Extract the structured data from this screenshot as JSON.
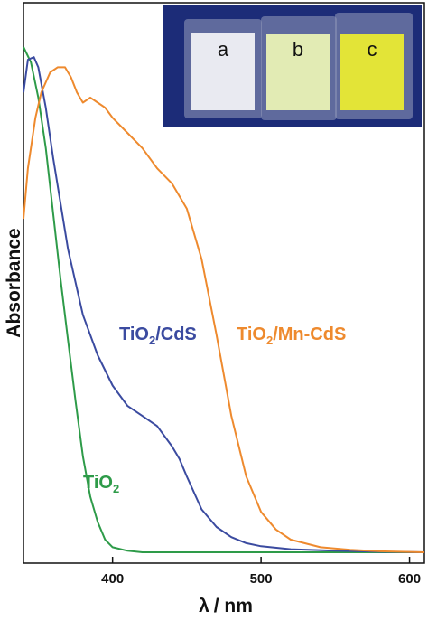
{
  "chart_data": {
    "type": "line",
    "title": "",
    "xlabel_symbol": "λ",
    "xlabel_unit": "/ nm",
    "ylabel": "Absorbance",
    "xlim": [
      340,
      610
    ],
    "ylim": [
      0,
      1
    ],
    "xticks": [
      400,
      500,
      600
    ],
    "grid": false,
    "series": [
      {
        "name": "TiO2",
        "label_main": "TiO",
        "label_sub": "2",
        "color": "#2e9b49",
        "x": [
          340,
          345,
          350,
          355,
          360,
          365,
          370,
          375,
          380,
          385,
          390,
          395,
          400,
          410,
          420,
          450,
          500,
          550,
          610
        ],
        "y": [
          1.0,
          0.97,
          0.9,
          0.8,
          0.67,
          0.54,
          0.42,
          0.3,
          0.19,
          0.11,
          0.06,
          0.025,
          0.01,
          0.003,
          0.0,
          0.0,
          0.0,
          0.0,
          0.0
        ]
      },
      {
        "name": "TiO2/CdS",
        "label_main": "TiO",
        "label_sub": "2",
        "label_tail": "/CdS",
        "color": "#3b4ba0",
        "x": [
          340,
          343,
          347,
          350,
          355,
          360,
          370,
          380,
          390,
          400,
          410,
          420,
          430,
          440,
          445,
          450,
          460,
          470,
          480,
          490,
          500,
          520,
          550,
          580,
          610
        ],
        "y": [
          0.91,
          0.975,
          0.98,
          0.96,
          0.88,
          0.78,
          0.6,
          0.47,
          0.39,
          0.33,
          0.29,
          0.27,
          0.25,
          0.21,
          0.185,
          0.15,
          0.085,
          0.05,
          0.03,
          0.018,
          0.012,
          0.006,
          0.003,
          0.001,
          0.0
        ]
      },
      {
        "name": "TiO2/Mn-CdS",
        "label_main": "TiO",
        "label_sub": "2",
        "label_tail": "/Mn-CdS",
        "color": "#ee8a2e",
        "x": [
          340,
          343,
          348,
          352,
          358,
          363,
          368,
          372,
          376,
          380,
          385,
          390,
          395,
          400,
          410,
          420,
          430,
          440,
          450,
          460,
          470,
          480,
          490,
          500,
          510,
          520,
          540,
          560,
          580,
          610
        ],
        "y": [
          0.66,
          0.76,
          0.86,
          0.91,
          0.95,
          0.96,
          0.96,
          0.94,
          0.91,
          0.89,
          0.9,
          0.89,
          0.88,
          0.86,
          0.83,
          0.8,
          0.76,
          0.73,
          0.68,
          0.58,
          0.43,
          0.27,
          0.15,
          0.08,
          0.045,
          0.025,
          0.01,
          0.005,
          0.002,
          0.0
        ]
      }
    ],
    "inset_photo": {
      "letters": [
        "a",
        "b",
        "c"
      ],
      "background": "#1c2c78",
      "sample_colors": [
        "#e9eaf1",
        "#e2ebb4",
        "#e3e437"
      ]
    }
  }
}
